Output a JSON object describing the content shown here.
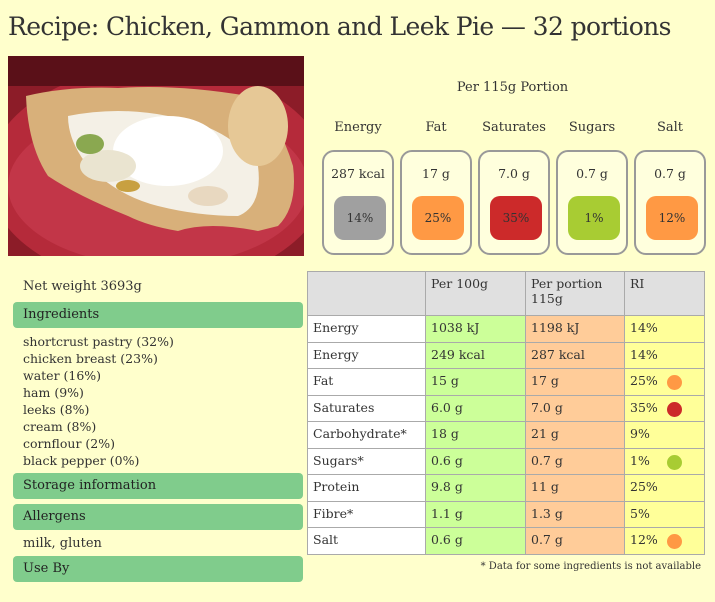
{
  "page": {
    "title": "Recipe: Chicken, Gammon and Leek Pie — 32 portions"
  },
  "portion": {
    "heading": "Per 115g Portion",
    "items": [
      {
        "label": "Energy",
        "value": "287 kcal",
        "pct": "14%",
        "color": "#a0a0a0"
      },
      {
        "label": "Fat",
        "value": "17 g",
        "pct": "25%",
        "color": "#ff9944"
      },
      {
        "label": "Saturates",
        "value": "7.0 g",
        "pct": "35%",
        "color": "#cc2a2a"
      },
      {
        "label": "Sugars",
        "value": "0.7 g",
        "pct": "1%",
        "color": "#a8cc33"
      },
      {
        "label": "Salt",
        "value": "0.7 g",
        "pct": "12%",
        "color": "#ff9944"
      }
    ]
  },
  "left": {
    "net_weight": "Net weight 3693g",
    "ingredients_label": "Ingredients",
    "ingredients": [
      "shortcrust pastry (32%)",
      "chicken  breast (23%)",
      "water (16%)",
      "ham (9%)",
      "leeks (8%)",
      "cream (8%)",
      "cornflour (2%)",
      "black pepper (0%)"
    ],
    "storage_label": "Storage information",
    "allergens_label": "Allergens",
    "allergens_text": "milk, gluten",
    "useby_label": "Use By"
  },
  "table": {
    "headers": [
      "",
      "Per 100g",
      "Per portion 115g",
      "RI"
    ],
    "rows": [
      {
        "name": "Energy",
        "per100": "1038 kJ",
        "portion": "1198 kJ",
        "ri": "14%",
        "dot": ""
      },
      {
        "name": "Energy",
        "per100": "249 kcal",
        "portion": "287 kcal",
        "ri": "14%",
        "dot": ""
      },
      {
        "name": "Fat",
        "per100": "15 g",
        "portion": "17 g",
        "ri": "25%",
        "dot": "#ff9944"
      },
      {
        "name": "Saturates",
        "per100": "6.0 g",
        "portion": "7.0 g",
        "ri": "35%",
        "dot": "#cc2a2a"
      },
      {
        "name": "Carbohydrate*",
        "per100": "18 g",
        "portion": "21 g",
        "ri": "9%",
        "dot": ""
      },
      {
        "name": "Sugars*",
        "per100": "0.6 g",
        "portion": "0.7 g",
        "ri": "1%",
        "dot": "#a8cc33"
      },
      {
        "name": "Protein",
        "per100": "9.8 g",
        "portion": "11 g",
        "ri": "25%",
        "dot": ""
      },
      {
        "name": "Fibre*",
        "per100": "1.1 g",
        "portion": "1.3 g",
        "ri": "5%",
        "dot": ""
      },
      {
        "name": "Salt",
        "per100": "0.6 g",
        "portion": "0.7 g",
        "ri": "12%",
        "dot": "#ff9944"
      }
    ],
    "footnote": "* Data for some ingredients is not available"
  }
}
